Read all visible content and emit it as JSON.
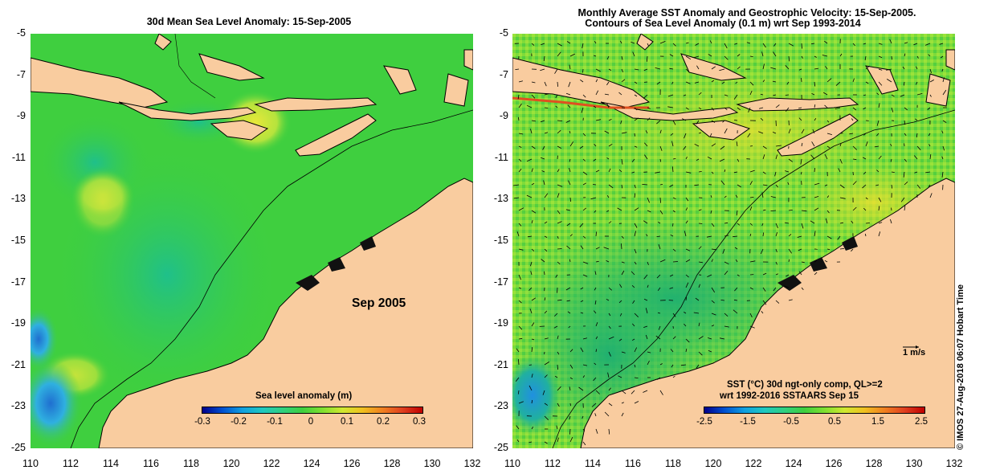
{
  "left_panel": {
    "title": "30d Mean Sea Level Anomaly: 15-Sep-2005",
    "date_label": "Sep 2005",
    "colorbar": {
      "title": "Sea level anomaly (m)",
      "ticks": [
        "-0.3",
        "-0.2",
        "-0.1",
        "0",
        "0.1",
        "0.2",
        "0.3"
      ]
    }
  },
  "right_panel": {
    "title_line1": "Monthly Average SST Anomaly  and Geostrophic Velocity: 15-Sep-2005.",
    "title_line2": "Contours of Sea Level Anomaly (0.1 m) wrt Sep 1993-2014",
    "vector_scale_label": "1 m/s",
    "legend_line1": "SST (°C) 30d ngt-only comp, QL>=2",
    "legend_line2": "wrt 1992-2016 SSTAARS Sep 15",
    "colorbar": {
      "ticks": [
        "-2.5",
        "-1.5",
        "-0.5",
        "0.5",
        "1.5",
        "2.5"
      ]
    }
  },
  "axes": {
    "y_ticks": [
      "-5",
      "-7",
      "-9",
      "-11",
      "-13",
      "-15",
      "-17",
      "-19",
      "-21",
      "-23",
      "-25"
    ],
    "x_ticks": [
      "110",
      "112",
      "114",
      "116",
      "118",
      "120",
      "122",
      "124",
      "126",
      "128",
      "130",
      "132"
    ]
  },
  "credit": "© IMOS 27-Aug-2018 06:07 Hobart Time",
  "colors": {
    "land": "#f9cc9f",
    "ocean_base": "#3fcf3f",
    "coast": "#000000"
  }
}
